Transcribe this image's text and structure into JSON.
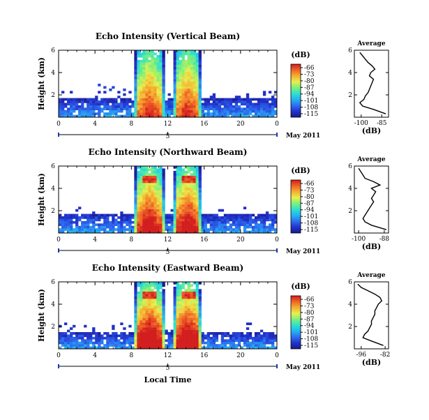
{
  "figure": {
    "xlabel": "Local Time",
    "date_label": "May 2011",
    "day_label": "5",
    "ylabel": "Height (km)",
    "colorbar_unit": "(dB)",
    "colorbar_ticks": [
      "-66",
      "-73",
      "-80",
      "-87",
      "-94",
      "-101",
      "-108",
      "-115"
    ],
    "colorbar_colors": [
      "#1a1a8c",
      "#2233cc",
      "#2e6ef0",
      "#23b4f0",
      "#2fe0d0",
      "#7cf07a",
      "#e6f050",
      "#f5b030",
      "#f06428",
      "#d21e1e"
    ]
  },
  "chart_data": [
    {
      "type": "heatmap",
      "title": "Echo Intensity (Vertical Beam)",
      "xlabel": "",
      "ylabel": "Height (km)",
      "xlim": [
        0,
        24
      ],
      "ylim": [
        0,
        6
      ],
      "xticks": [
        "0",
        "4",
        "8",
        "12",
        "16",
        "20",
        "0"
      ],
      "yticks": [
        "2",
        "4",
        "6"
      ],
      "value_unit": "dB",
      "zlim": [
        -115,
        -66
      ],
      "profile": {
        "title": "Average",
        "xlabel": "(dB)",
        "xticks": [
          "-100",
          "-85"
        ],
        "xlim": [
          -105,
          -80
        ],
        "height_km": [
          0.3,
          0.7,
          1.0,
          1.3,
          1.6,
          1.9,
          2.2,
          2.5,
          2.8,
          3.1,
          3.4,
          3.7,
          4.0,
          4.3,
          4.6,
          4.9,
          5.2,
          5.5,
          5.8
        ],
        "value_db": [
          -82,
          -91,
          -99,
          -101,
          -98,
          -97,
          -95,
          -94,
          -93,
          -92,
          -91,
          -94,
          -93,
          -90,
          -92,
          -95,
          -97,
          -99,
          -101
        ]
      }
    },
    {
      "type": "heatmap",
      "title": "Echo Intensity (Northward Beam)",
      "xlabel": "",
      "ylabel": "Height (km)",
      "xlim": [
        0,
        24
      ],
      "ylim": [
        0,
        6
      ],
      "xticks": [
        "0",
        "4",
        "8",
        "12",
        "16",
        "20",
        "0"
      ],
      "yticks": [
        "2",
        "4",
        "6"
      ],
      "value_unit": "dB",
      "zlim": [
        -115,
        -66
      ],
      "profile": {
        "title": "Average",
        "xlabel": "(dB)",
        "xticks": [
          "-100",
          "-88"
        ],
        "xlim": [
          -102,
          -86
        ],
        "height_km": [
          0.3,
          0.7,
          1.0,
          1.3,
          1.6,
          1.9,
          2.2,
          2.5,
          2.8,
          3.1,
          3.4,
          3.7,
          4.0,
          4.3,
          4.6,
          4.9,
          5.2,
          5.5,
          5.8
        ],
        "value_db": [
          -87,
          -94,
          -97,
          -98,
          -97,
          -96,
          -95,
          -94,
          -93,
          -94,
          -93,
          -92,
          -94,
          -90,
          -93,
          -97,
          -98,
          -99,
          -100
        ]
      }
    },
    {
      "type": "heatmap",
      "title": "Echo Intensity (Eastward Beam)",
      "xlabel": "Local Time",
      "ylabel": "Height (km)",
      "xlim": [
        0,
        24
      ],
      "ylim": [
        0,
        6
      ],
      "xticks": [
        "0",
        "4",
        "8",
        "12",
        "16",
        "20",
        "0"
      ],
      "yticks": [
        "2",
        "4",
        "6"
      ],
      "value_unit": "dB",
      "zlim": [
        -115,
        -66
      ],
      "profile": {
        "title": "Average",
        "xlabel": "(dB)",
        "xticks": [
          "-96",
          "-82"
        ],
        "xlim": [
          -100,
          -80
        ],
        "height_km": [
          0.3,
          0.7,
          1.0,
          1.3,
          1.6,
          1.9,
          2.2,
          2.5,
          2.8,
          3.1,
          3.4,
          3.7,
          4.0,
          4.3,
          4.6,
          4.9,
          5.2,
          5.5,
          5.8
        ],
        "value_db": [
          -83,
          -90,
          -95,
          -94,
          -92,
          -91,
          -90,
          -90,
          -89,
          -88,
          -88,
          -87,
          -86,
          -84,
          -85,
          -88,
          -92,
          -96,
          -98
        ]
      }
    }
  ]
}
